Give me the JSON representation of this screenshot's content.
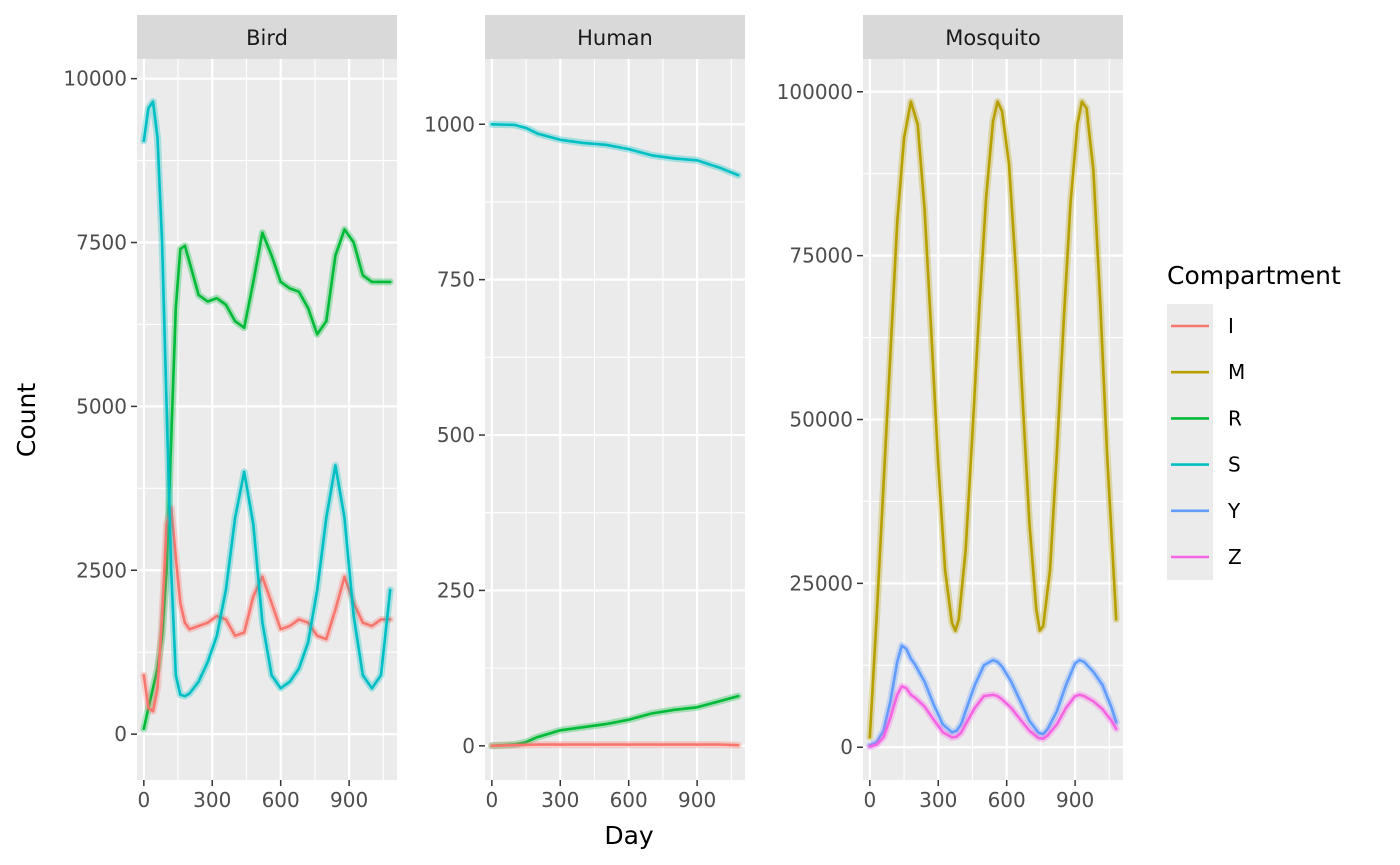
{
  "chart_data": {
    "type": "line",
    "xlabel": "Day",
    "ylabel": "Count",
    "colors": {
      "I": "#F8766D",
      "M": "#B79F00",
      "R": "#00BA38",
      "S": "#00BFC4",
      "Y": "#619CFF",
      "Z": "#F564E3"
    },
    "legend": {
      "title": "Compartment",
      "placement": "right",
      "entries": [
        "I",
        "M",
        "R",
        "S",
        "Y",
        "Z"
      ]
    },
    "panels": [
      {
        "title": "Bird",
        "xlim": [
          -30,
          1110
        ],
        "ylim": [
          -700,
          10300
        ],
        "xticks": [
          0,
          300,
          600,
          900
        ],
        "xtick_labels": [
          "0",
          "300",
          "600",
          "900"
        ],
        "yticks": [
          0,
          2500,
          5000,
          7500,
          10000
        ],
        "ytick_labels": [
          "0",
          "2500",
          "5000",
          "7500",
          "10000"
        ],
        "series": [
          {
            "name": "R",
            "x": [
              0,
              20,
              40,
              60,
              80,
              100,
              120,
              140,
              160,
              180,
              200,
              240,
              280,
              320,
              360,
              400,
              440,
              480,
              520,
              560,
              600,
              640,
              680,
              720,
              760,
              800,
              840,
              880,
              920,
              960,
              1000,
              1040,
              1080
            ],
            "y": [
              80,
              400,
              700,
              1000,
              1500,
              2500,
              4500,
              6500,
              7400,
              7450,
              7200,
              6700,
              6600,
              6650,
              6550,
              6300,
              6200,
              6900,
              7650,
              7300,
              6900,
              6800,
              6750,
              6500,
              6100,
              6300,
              7300,
              7700,
              7500,
              7000,
              6900,
              6900,
              6900
            ]
          },
          {
            "name": "I",
            "x": [
              0,
              20,
              40,
              60,
              80,
              100,
              120,
              140,
              160,
              180,
              200,
              240,
              280,
              320,
              360,
              400,
              440,
              480,
              520,
              560,
              600,
              640,
              680,
              720,
              760,
              800,
              840,
              880,
              920,
              960,
              1000,
              1040,
              1080
            ],
            "y": [
              900,
              400,
              350,
              700,
              1800,
              3200,
              3450,
              2700,
              2000,
              1700,
              1600,
              1650,
              1700,
              1800,
              1750,
              1500,
              1550,
              2100,
              2400,
              2000,
              1600,
              1650,
              1750,
              1700,
              1500,
              1450,
              1900,
              2400,
              2000,
              1700,
              1650,
              1750,
              1750
            ]
          },
          {
            "name": "S",
            "x": [
              0,
              20,
              40,
              60,
              80,
              100,
              120,
              140,
              160,
              180,
              200,
              240,
              280,
              320,
              360,
              400,
              440,
              480,
              520,
              560,
              600,
              640,
              680,
              720,
              760,
              800,
              840,
              880,
              920,
              960,
              1000,
              1040,
              1080
            ],
            "y": [
              9050,
              9550,
              9650,
              9100,
              7500,
              5000,
              2500,
              900,
              600,
              580,
              620,
              800,
              1100,
              1500,
              2200,
              3300,
              4000,
              3200,
              1700,
              900,
              700,
              800,
              1000,
              1400,
              2200,
              3300,
              4100,
              3300,
              1800,
              900,
              700,
              900,
              2200
            ]
          }
        ]
      },
      {
        "title": "Human",
        "xlim": [
          -30,
          1110
        ],
        "ylim": [
          -55,
          1105
        ],
        "xticks": [
          0,
          300,
          600,
          900
        ],
        "xtick_labels": [
          "0",
          "300",
          "600",
          "900"
        ],
        "yticks": [
          0,
          250,
          500,
          750,
          1000
        ],
        "ytick_labels": [
          "0",
          "250",
          "500",
          "750",
          "1000"
        ],
        "series": [
          {
            "name": "S",
            "x": [
              0,
              100,
              150,
              200,
              300,
              400,
              500,
              600,
              700,
              800,
              900,
              1000,
              1080
            ],
            "y": [
              1000,
              999,
              994,
              985,
              975,
              970,
              967,
              960,
              950,
              945,
              942,
              930,
              918
            ]
          },
          {
            "name": "R",
            "x": [
              0,
              100,
              150,
              200,
              300,
              400,
              500,
              600,
              700,
              800,
              900,
              1000,
              1080
            ],
            "y": [
              0,
              2,
              6,
              14,
              25,
              30,
              35,
              42,
              52,
              58,
              62,
              72,
              80
            ]
          },
          {
            "name": "I",
            "x": [
              0,
              100,
              200,
              300,
              400,
              500,
              600,
              700,
              800,
              900,
              1000,
              1080
            ],
            "y": [
              0,
              1,
              2,
              2,
              2,
              2,
              2,
              2,
              2,
              2,
              2,
              1
            ]
          }
        ]
      },
      {
        "title": "Mosquito",
        "xlim": [
          -30,
          1110
        ],
        "ylim": [
          -5000,
          105000
        ],
        "xticks": [
          0,
          300,
          600,
          900
        ],
        "xtick_labels": [
          "0",
          "300",
          "600",
          "900"
        ],
        "yticks": [
          0,
          25000,
          50000,
          75000,
          100000
        ],
        "ytick_labels": [
          "0",
          "25000",
          "50000",
          "75000",
          "100000"
        ],
        "series": [
          {
            "name": "M",
            "x": [
              0,
              30,
              60,
              90,
              120,
              150,
              180,
              210,
              240,
              270,
              300,
              330,
              360,
              375,
              390,
              420,
              450,
              480,
              510,
              540,
              560,
              580,
              610,
              640,
              670,
              700,
              730,
              745,
              760,
              790,
              820,
              850,
              880,
              910,
              930,
              950,
              980,
              1010,
              1040,
              1080
            ],
            "y": [
              1500,
              20000,
              40000,
              60000,
              80000,
              93000,
              98500,
              95000,
              82000,
              63000,
              43000,
              27000,
              19000,
              17800,
              19500,
              30000,
              48000,
              67000,
              84000,
              95500,
              98500,
              97000,
              89000,
              73000,
              53000,
              34000,
              21000,
              17800,
              18500,
              27000,
              45000,
              65000,
              83000,
              95000,
              98500,
              97500,
              88000,
              68000,
              45000,
              19500
            ]
          },
          {
            "name": "Y",
            "x": [
              0,
              30,
              60,
              90,
              120,
              140,
              160,
              180,
              200,
              240,
              280,
              320,
              360,
              380,
              400,
              420,
              460,
              500,
              540,
              560,
              580,
              620,
              660,
              700,
              740,
              760,
              780,
              820,
              860,
              900,
              920,
              940,
              980,
              1020,
              1060,
              1080
            ],
            "y": [
              300,
              800,
              2500,
              7000,
              13000,
              15500,
              15000,
              13500,
              12500,
              10000,
              6500,
              3500,
              2300,
              2500,
              3500,
              5500,
              9500,
              12500,
              13300,
              13000,
              12300,
              10000,
              7000,
              4000,
              2200,
              2000,
              2800,
              5500,
              9500,
              12800,
              13300,
              13000,
              11500,
              9500,
              6000,
              3800
            ]
          },
          {
            "name": "Z",
            "x": [
              0,
              30,
              60,
              90,
              120,
              140,
              160,
              180,
              200,
              240,
              280,
              320,
              360,
              380,
              400,
              420,
              460,
              500,
              540,
              560,
              580,
              620,
              660,
              700,
              740,
              760,
              780,
              820,
              860,
              900,
              920,
              940,
              980,
              1020,
              1060,
              1080
            ],
            "y": [
              100,
              400,
              1500,
              4500,
              8000,
              9300,
              9000,
              8000,
              7500,
              6200,
              4200,
              2300,
              1500,
              1600,
              2200,
              3500,
              6000,
              7800,
              8000,
              7800,
              7300,
              6000,
              4200,
              2500,
              1400,
              1300,
              1800,
              3500,
              6000,
              7800,
              8000,
              7800,
              7000,
              5800,
              4000,
              2800
            ]
          }
        ]
      }
    ]
  }
}
